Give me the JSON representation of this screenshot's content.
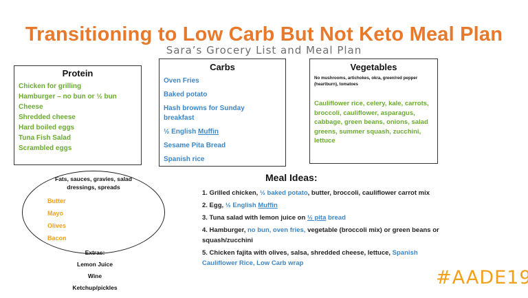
{
  "title": "Transitioning to Low Carb But Not Keto Meal Plan",
  "subtitle": "Sara’s Grocery List and Meal Plan",
  "protein": {
    "heading": "Protein",
    "items": [
      "Chicken for grilling",
      "Hamburger – no bun or ½ bun",
      "Cheese",
      "Shredded cheese",
      "Hard boiled eggs",
      "Tuna Fish Salad",
      "Scrambled eggs"
    ]
  },
  "carbs": {
    "heading": "Carbs",
    "items": [
      "Oven Fries",
      "Baked potato",
      "Hash browns for Sunday breakfast"
    ],
    "muffin_prefix": "½ English ",
    "muffin_link": "Muffin",
    "items_after": [
      "Sesame Pita Bread",
      "Spanish  rice"
    ]
  },
  "vegetables": {
    "heading": "Vegetables",
    "note": "No mushrooms, artichokes, okra, green/red pepper (heartburn), tomatoes",
    "list": "Cauliflower rice, celery, kale, carrots, broccoli, cauliflower, asparagus,  cabbage, green beans, onions, salad greens, summer squash, zucchini, lettuce"
  },
  "fats": {
    "heading": "Fats, sauces, gravies, salad dressings, spreads",
    "items": [
      "Butter",
      "Mayo",
      "Olives",
      "Bacon"
    ]
  },
  "extras": {
    "heading": "Extras:",
    "items": [
      "Lemon Juice",
      "Wine",
      "Ketchup/pickles"
    ]
  },
  "meals": {
    "heading": "Meal Ideas:",
    "m1": {
      "a": "1. Grilled chicken, ",
      "b": "½ baked potato",
      "c": ",  butter, broccoli, cauliflower carrot mix"
    },
    "m2": {
      "a": "2. Egg, ",
      "b": "½ English ",
      "c": "Muffin"
    },
    "m3": {
      "a": "3. Tuna salad with lemon juice on ",
      "b": "½  pita",
      "c": " bread"
    },
    "m4": {
      "a": "4. Hamburger, ",
      "b": "no bun, oven fries,",
      "c": " vegetable (broccoli mix) or green beans or squash/zucchini"
    },
    "m5": {
      "a": "5. Chicken fajita with olives, salsa, shredded cheese, lettuce, ",
      "b": "Spanish  Cauliflower Rice, Low Carb wrap"
    }
  },
  "logo": "#AADE19",
  "colors": {
    "title": "#e8792b",
    "green": "#6aaa2f",
    "blue": "#3d86c6",
    "orange": "#f0a01a"
  }
}
